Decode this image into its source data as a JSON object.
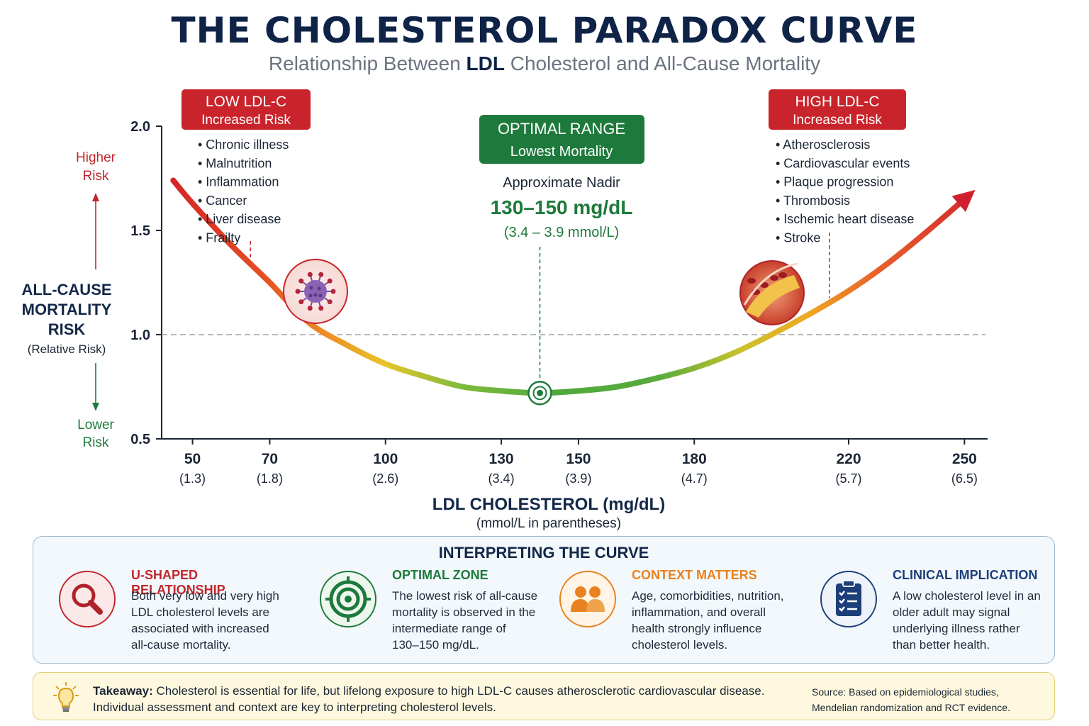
{
  "header": {
    "title": "THE CHOLESTEROL PARADOX CURVE",
    "subtitle_pre": "Relationship Between ",
    "subtitle_strong": "LDL",
    "subtitle_post": " Cholesterol and All-Cause Mortality"
  },
  "chart_data": {
    "type": "line",
    "x": [
      45,
      50,
      60,
      70,
      80,
      90,
      100,
      110,
      120,
      130,
      140,
      150,
      160,
      170,
      180,
      190,
      200,
      210,
      220,
      230,
      240,
      250
    ],
    "y": [
      1.74,
      1.63,
      1.43,
      1.25,
      1.06,
      0.95,
      0.86,
      0.8,
      0.75,
      0.73,
      0.72,
      0.73,
      0.75,
      0.79,
      0.84,
      0.91,
      1.0,
      1.1,
      1.21,
      1.34,
      1.49,
      1.65
    ],
    "xlim": [
      42,
      256
    ],
    "ylim": [
      0.5,
      2.0
    ],
    "xticks": [
      {
        "value": 50,
        "label": "50",
        "sub": "(1.3)"
      },
      {
        "value": 70,
        "label": "70",
        "sub": "(1.8)"
      },
      {
        "value": 100,
        "label": "100",
        "sub": "(2.6)"
      },
      {
        "value": 130,
        "label": "130",
        "sub": "(3.4)"
      },
      {
        "value": 150,
        "label": "150",
        "sub": "(3.9)"
      },
      {
        "value": 180,
        "label": "180",
        "sub": "(4.7)"
      },
      {
        "value": 220,
        "label": "220",
        "sub": "(5.7)"
      },
      {
        "value": 250,
        "label": "250",
        "sub": "(6.5)"
      }
    ],
    "yticks": [
      {
        "value": 0.5,
        "label": "0.5"
      },
      {
        "value": 1.0,
        "label": "1.0"
      },
      {
        "value": 1.5,
        "label": "1.5"
      },
      {
        "value": 2.0,
        "label": "2.0"
      }
    ],
    "reference_line_y": 1.0,
    "nadir": {
      "x": 140,
      "y": 0.72
    },
    "xlabel": "LDL CHOLESTEROL (mg/dL)",
    "xlabel_sub": "(mmol/L in parentheses)",
    "ylabel_lines": [
      "ALL-CAUSE",
      "MORTALITY",
      "RISK"
    ],
    "ylabel_sub": "(Relative Risk)",
    "higher_risk": [
      "Higher",
      "Risk"
    ],
    "lower_risk": [
      "Lower",
      "Risk"
    ],
    "colors": {
      "red": "#d42027",
      "orange": "#ef7d22",
      "yellow": "#e3c227",
      "green": "#4fa83c",
      "dark_green": "#1e7a3c"
    },
    "low_box": {
      "title": "LOW LDL-C",
      "subtitle": "Increased Risk",
      "items": [
        "Chronic illness",
        "Malnutrition",
        "Inflammation",
        "Cancer",
        "Liver disease",
        "Frailty"
      ],
      "marker_x": 65
    },
    "high_box": {
      "title": "HIGH LDL-C",
      "subtitle": "Increased Risk",
      "items": [
        "Atherosclerosis",
        "Cardiovascular events",
        "Plaque progression",
        "Thrombosis",
        "Ischemic heart disease",
        "Stroke"
      ],
      "marker_x": 215
    },
    "optimal_box": {
      "title": "OPTIMAL RANGE",
      "subtitle": "Lowest Mortality",
      "nadir_label": "Approximate Nadir",
      "range_mgdl": "130–150 mg/dL",
      "range_mmol": "(3.4 – 3.9 mmol/L)"
    }
  },
  "interpretation": {
    "title": "INTERPRETING THE CURVE",
    "columns": [
      {
        "icon": "magnifier-icon",
        "heading": "U-SHAPED RELATIONSHIP",
        "color": "#c0272d",
        "lines": [
          "Both very low and very high",
          "LDL cholesterol levels are",
          "associated with increased",
          "all-cause mortality."
        ]
      },
      {
        "icon": "target-icon",
        "heading": "OPTIMAL ZONE",
        "color": "#1e7a3c",
        "lines": [
          "The lowest risk of all-cause",
          "mortality is observed in the",
          "intermediate range of",
          "130–150 mg/dL."
        ]
      },
      {
        "icon": "people-icon",
        "heading": "CONTEXT MATTERS",
        "color": "#e8821e",
        "lines": [
          "Age, comorbidities, nutrition,",
          "inflammation, and overall",
          "health strongly influence",
          "cholesterol levels."
        ]
      },
      {
        "icon": "clipboard-icon",
        "heading": "CLINICAL IMPLICATION",
        "color": "#1c3f7a",
        "lines": [
          "A low cholesterol level in an",
          "older adult may signal",
          "underlying illness rather",
          "than better health."
        ]
      }
    ]
  },
  "takeaway": {
    "label": "Takeaway:",
    "line1": " Cholesterol is essential for life, but lifelong exposure to high LDL-C causes atherosclerotic cardiovascular disease.",
    "line2": "Individual assessment and context are key to interpreting cholesterol levels.",
    "source1": "Source: Based on epidemiological studies,",
    "source2": "Mendelian randomization and RCT evidence."
  }
}
